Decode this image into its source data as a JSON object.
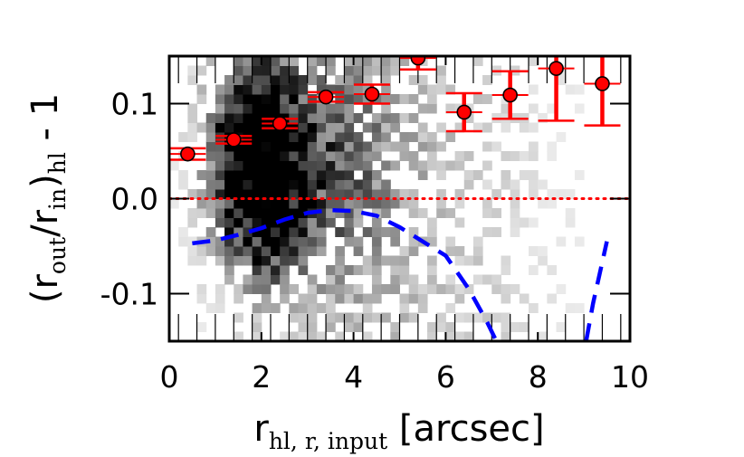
{
  "chart_data": {
    "type": "scatter",
    "title": "",
    "xlabel": {
      "main": "r",
      "sub": "hl, r, input",
      "unit": " [arcsec]"
    },
    "ylabel": {
      "open": "(r",
      "sub1": "out",
      "mid": "/r",
      "sub2": "in",
      "close": ")",
      "sub3": "hl",
      "tail": " - 1"
    },
    "xlim": [
      0,
      10
    ],
    "ylim": [
      -0.15,
      0.15
    ],
    "x_ticks": [
      0,
      2,
      4,
      6,
      8,
      10
    ],
    "x_tick_labels": [
      "0",
      "2",
      "4",
      "6",
      "8",
      "10"
    ],
    "y_ticks": [
      -0.1,
      0.0,
      0.1
    ],
    "y_tick_labels": [
      "-0.1",
      "0.0",
      "0.1"
    ],
    "grid": false,
    "legend": null,
    "colors": {
      "points": "#ff0000",
      "reference": "#ff0000",
      "curve": "#0000ff",
      "density": "#000000"
    },
    "binned_points": [
      {
        "x": 0.4,
        "y": 0.047,
        "yerr": 0.006
      },
      {
        "x": 1.4,
        "y": 0.062,
        "yerr": 0.004
      },
      {
        "x": 2.4,
        "y": 0.079,
        "yerr": 0.005
      },
      {
        "x": 3.4,
        "y": 0.107,
        "yerr": 0.005
      },
      {
        "x": 4.4,
        "y": 0.11,
        "yerr": 0.01
      },
      {
        "x": 5.4,
        "y": 0.148,
        "yerr": 0.012
      },
      {
        "x": 6.4,
        "y": 0.091,
        "yerr": 0.02
      },
      {
        "x": 7.4,
        "y": 0.109,
        "yerr": 0.025
      },
      {
        "x": 8.4,
        "y": 0.137,
        "yerr": 0.055
      },
      {
        "x": 9.4,
        "y": 0.121,
        "yerr": 0.044
      }
    ],
    "reference_line": {
      "y": 0.0,
      "style": "dotted"
    },
    "dashed_curve": [
      [
        0.5,
        -0.047
      ],
      [
        1.0,
        -0.044
      ],
      [
        1.5,
        -0.038
      ],
      [
        2.0,
        -0.031
      ],
      [
        2.5,
        -0.022
      ],
      [
        3.0,
        -0.015
      ],
      [
        3.5,
        -0.012
      ],
      [
        4.0,
        -0.013
      ],
      [
        4.5,
        -0.018
      ],
      [
        5.0,
        -0.03
      ],
      [
        5.5,
        -0.045
      ],
      [
        6.0,
        -0.06
      ],
      [
        6.5,
        -0.095
      ],
      [
        6.9,
        -0.13
      ],
      [
        7.1,
        -0.15
      ]
    ],
    "dashed_curve_2": [
      [
        9.05,
        -0.15
      ],
      [
        9.2,
        -0.11
      ],
      [
        9.5,
        -0.045
      ]
    ],
    "density_bins": {
      "nx": 50,
      "ny": 30
    }
  }
}
